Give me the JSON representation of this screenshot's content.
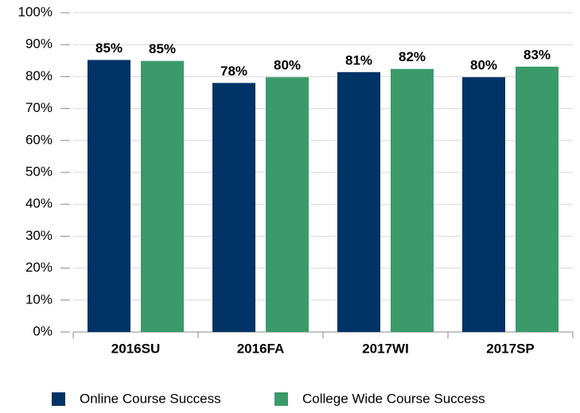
{
  "chart_data": {
    "type": "bar",
    "categories": [
      "2016SU",
      "2016FA",
      "2017WI",
      "2017SP"
    ],
    "series": [
      {
        "name": "Online Course Success",
        "color": "#003366",
        "values": [
          85.2,
          78.0,
          81.4,
          79.8
        ],
        "value_labels": [
          "85%",
          "78%",
          "81%",
          "80%"
        ]
      },
      {
        "name": "College Wide Course Success",
        "color": "#3a9a6a",
        "values": [
          84.9,
          79.8,
          82.4,
          83.1
        ],
        "value_labels": [
          "85%",
          "80%",
          "82%",
          "83%"
        ]
      }
    ],
    "ylim": [
      0,
      100
    ],
    "yticks": [
      {
        "value": 0,
        "label": "0%"
      },
      {
        "value": 10,
        "label": "10%"
      },
      {
        "value": 20,
        "label": "20%"
      },
      {
        "value": 30,
        "label": "30%"
      },
      {
        "value": 40,
        "label": "40%"
      },
      {
        "value": 50,
        "label": "50%"
      },
      {
        "value": 60,
        "label": "60%"
      },
      {
        "value": 70,
        "label": "70%"
      },
      {
        "value": 80,
        "label": "80%"
      },
      {
        "value": 90,
        "label": "90%"
      },
      {
        "value": 100,
        "label": "100%"
      }
    ],
    "grid": true,
    "legend": "bottom"
  }
}
